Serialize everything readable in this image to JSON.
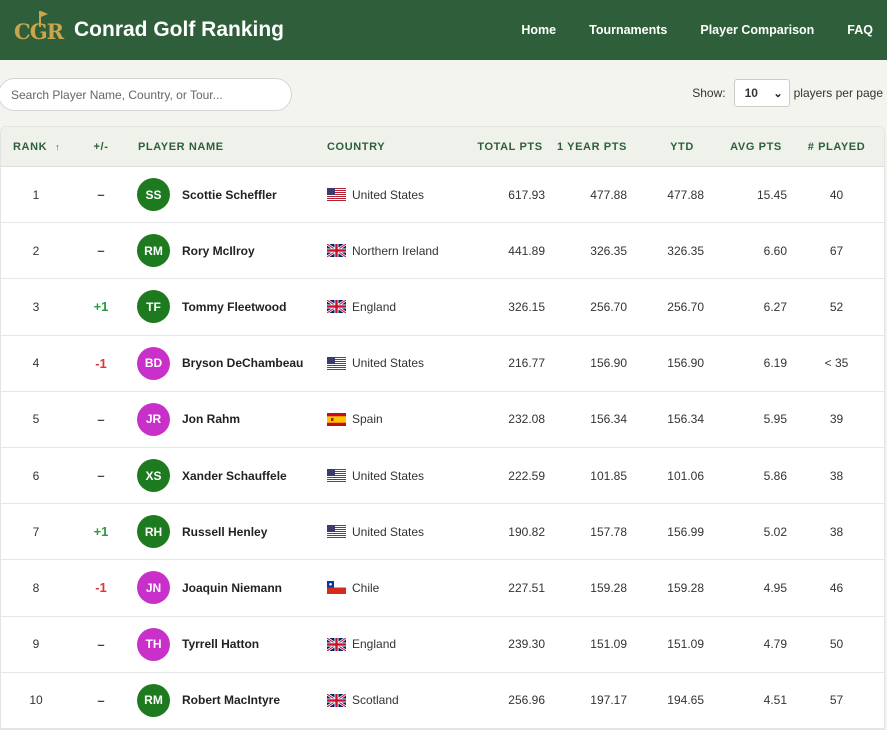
{
  "header": {
    "logo_text": "CGR",
    "site_title": "Conrad Golf Ranking",
    "nav": [
      "Home",
      "Tournaments",
      "Player Comparison",
      "FAQ"
    ]
  },
  "controls": {
    "search_placeholder": "Search Player Name, Country, or Tour...",
    "show_label": "Show:",
    "per_page_value": "10",
    "per_page_suffix": "players per page"
  },
  "table": {
    "columns": {
      "rank": "RANK",
      "rank_sort": "↑",
      "move": "+/-",
      "player": "PLAYER NAME",
      "country": "COUNTRY",
      "total": "TOTAL PTS",
      "year": "1 YEAR PTS",
      "ytd": "YTD",
      "avg": "AVG PTS",
      "played": "# PLAYED"
    },
    "rows": [
      {
        "rank": "1",
        "move": "–",
        "move_type": "none",
        "initials": "SS",
        "avatar_color": "#1e7a1e",
        "name": "Scottie Scheffler",
        "flag": "us",
        "country": "United States",
        "total": "617.93",
        "year": "477.88",
        "ytd": "477.88",
        "avg": "15.45",
        "played": "40"
      },
      {
        "rank": "2",
        "move": "–",
        "move_type": "none",
        "initials": "RM",
        "avatar_color": "#1e7a1e",
        "name": "Rory McIlroy",
        "flag": "gb",
        "country": "Northern Ireland",
        "total": "441.89",
        "year": "326.35",
        "ytd": "326.35",
        "avg": "6.60",
        "played": "67"
      },
      {
        "rank": "3",
        "move": "+1",
        "move_type": "up",
        "initials": "TF",
        "avatar_color": "#1e7a1e",
        "name": "Tommy Fleetwood",
        "flag": "gb",
        "country": "England",
        "total": "326.15",
        "year": "256.70",
        "ytd": "256.70",
        "avg": "6.27",
        "played": "52"
      },
      {
        "rank": "4",
        "move": "-1",
        "move_type": "down",
        "initials": "BD",
        "avatar_color": "#c92fc9",
        "name": "Bryson DeChambeau",
        "flag": "us",
        "country": "United States",
        "total": "216.77",
        "year": "156.90",
        "ytd": "156.90",
        "avg": "6.19",
        "played": "< 35"
      },
      {
        "rank": "5",
        "move": "–",
        "move_type": "none",
        "initials": "JR",
        "avatar_color": "#c92fc9",
        "name": "Jon Rahm",
        "flag": "es",
        "country": "Spain",
        "total": "232.08",
        "year": "156.34",
        "ytd": "156.34",
        "avg": "5.95",
        "played": "39"
      },
      {
        "rank": "6",
        "move": "–",
        "move_type": "none",
        "initials": "XS",
        "avatar_color": "#1e7a1e",
        "name": "Xander Schauffele",
        "flag": "us",
        "country": "United States",
        "total": "222.59",
        "year": "101.85",
        "ytd": "101.06",
        "avg": "5.86",
        "played": "38"
      },
      {
        "rank": "7",
        "move": "+1",
        "move_type": "up",
        "initials": "RH",
        "avatar_color": "#1e7a1e",
        "name": "Russell Henley",
        "flag": "us",
        "country": "United States",
        "total": "190.82",
        "year": "157.78",
        "ytd": "156.99",
        "avg": "5.02",
        "played": "38"
      },
      {
        "rank": "8",
        "move": "-1",
        "move_type": "down",
        "initials": "JN",
        "avatar_color": "#c92fc9",
        "name": "Joaquin Niemann",
        "flag": "cl",
        "country": "Chile",
        "total": "227.51",
        "year": "159.28",
        "ytd": "159.28",
        "avg": "4.95",
        "played": "46"
      },
      {
        "rank": "9",
        "move": "–",
        "move_type": "none",
        "initials": "TH",
        "avatar_color": "#c92fc9",
        "name": "Tyrrell Hatton",
        "flag": "gb",
        "country": "England",
        "total": "239.30",
        "year": "151.09",
        "ytd": "151.09",
        "avg": "4.79",
        "played": "50"
      },
      {
        "rank": "10",
        "move": "–",
        "move_type": "none",
        "initials": "RM",
        "avatar_color": "#1e7a1e",
        "name": "Robert MacIntyre",
        "flag": "gb",
        "country": "Scotland",
        "total": "256.96",
        "year": "197.17",
        "ytd": "194.65",
        "avg": "4.51",
        "played": "57"
      }
    ]
  }
}
